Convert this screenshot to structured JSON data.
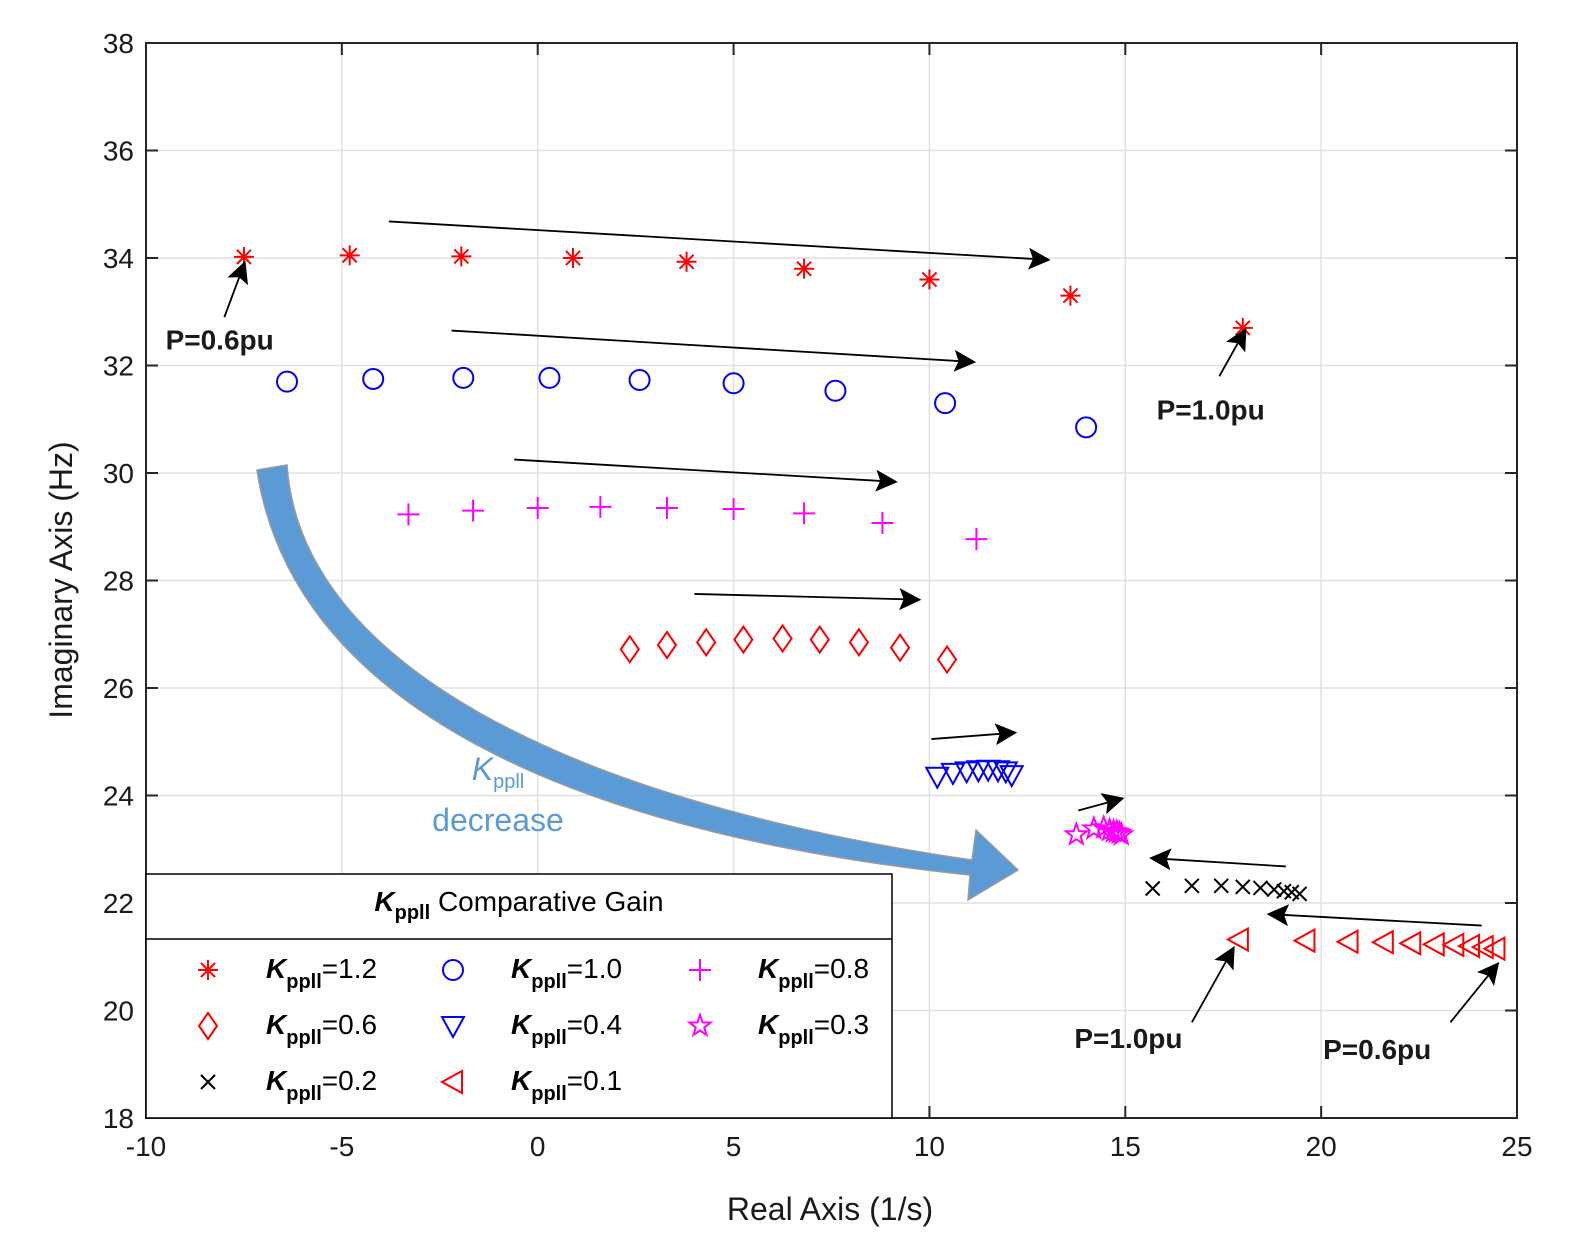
{
  "chart_data": {
    "type": "scatter",
    "xlabel": "Real Axis (1/s)",
    "ylabel": "Imaginary Axis (Hz)",
    "xlim": [
      -10,
      25
    ],
    "ylim": [
      18,
      38
    ],
    "xticks": [
      "-10",
      "-5",
      "0",
      "5",
      "10",
      "15",
      "20",
      "25"
    ],
    "yticks": [
      "18",
      "20",
      "22",
      "24",
      "26",
      "28",
      "30",
      "32",
      "34",
      "36",
      "38"
    ],
    "grid": true,
    "legend": {
      "title_symbol": "K",
      "title_sub": "ppll",
      "title_rest": " Comparative Gain",
      "placement": "bottom-left"
    },
    "series": [
      {
        "name": "Kppll=1.2",
        "gain": "=1.2",
        "marker": "asterisk",
        "color": "#ff0000",
        "points": [
          [
            -7.5,
            34.02
          ],
          [
            -4.8,
            34.05
          ],
          [
            -1.95,
            34.03
          ],
          [
            0.9,
            34.0
          ],
          [
            3.8,
            33.93
          ],
          [
            6.8,
            33.8
          ],
          [
            10.0,
            33.6
          ],
          [
            13.6,
            33.3
          ],
          [
            18.0,
            32.7
          ]
        ]
      },
      {
        "name": "Kppll=1.0",
        "gain": "=1.0",
        "marker": "circle",
        "color": "#0000ff",
        "points": [
          [
            -6.4,
            31.7
          ],
          [
            -4.2,
            31.75
          ],
          [
            -1.9,
            31.77
          ],
          [
            0.3,
            31.77
          ],
          [
            2.6,
            31.73
          ],
          [
            5.0,
            31.67
          ],
          [
            7.6,
            31.53
          ],
          [
            10.4,
            31.3
          ],
          [
            14.0,
            30.85
          ]
        ]
      },
      {
        "name": "Kppll=0.8",
        "gain": "=0.8",
        "marker": "plus",
        "color": "#ff00ff",
        "points": [
          [
            -3.3,
            29.23
          ],
          [
            -1.65,
            29.3
          ],
          [
            0.0,
            29.35
          ],
          [
            1.6,
            29.37
          ],
          [
            3.3,
            29.35
          ],
          [
            5.0,
            29.33
          ],
          [
            6.8,
            29.25
          ],
          [
            8.8,
            29.07
          ],
          [
            11.2,
            28.77
          ]
        ]
      },
      {
        "name": "Kppll=0.6",
        "gain": "=0.6",
        "marker": "diamond",
        "color": "#ff0000",
        "points": [
          [
            2.35,
            26.72
          ],
          [
            3.3,
            26.8
          ],
          [
            4.3,
            26.85
          ],
          [
            5.25,
            26.9
          ],
          [
            6.25,
            26.92
          ],
          [
            7.2,
            26.9
          ],
          [
            8.2,
            26.85
          ],
          [
            9.25,
            26.75
          ],
          [
            10.45,
            26.53
          ]
        ]
      },
      {
        "name": "Kppll=0.4",
        "gain": "=0.4",
        "marker": "triangle-down",
        "color": "#0000ff",
        "points": [
          [
            10.2,
            24.35
          ],
          [
            10.6,
            24.42
          ],
          [
            10.95,
            24.45
          ],
          [
            11.25,
            24.47
          ],
          [
            11.5,
            24.48
          ],
          [
            11.75,
            24.47
          ],
          [
            11.95,
            24.45
          ],
          [
            12.1,
            24.38
          ]
        ]
      },
      {
        "name": "Kppll=0.3",
        "gain": "=0.3",
        "marker": "star",
        "color": "#ff00ff",
        "points": [
          [
            13.75,
            23.27
          ],
          [
            14.2,
            23.38
          ],
          [
            14.45,
            23.4
          ],
          [
            14.6,
            23.35
          ],
          [
            14.7,
            23.33
          ],
          [
            14.78,
            23.32
          ],
          [
            14.85,
            23.3
          ],
          [
            14.9,
            23.27
          ]
        ]
      },
      {
        "name": "Kppll=0.2",
        "gain": "=0.2",
        "marker": "x",
        "color": "#000000",
        "points": [
          [
            15.7,
            22.27
          ],
          [
            16.7,
            22.32
          ],
          [
            17.45,
            22.32
          ],
          [
            18.0,
            22.3
          ],
          [
            18.45,
            22.28
          ],
          [
            18.8,
            22.25
          ],
          [
            19.05,
            22.22
          ],
          [
            19.25,
            22.2
          ],
          [
            19.45,
            22.17
          ]
        ]
      },
      {
        "name": "Kppll=0.1",
        "gain": "=0.1",
        "marker": "triangle-left",
        "color": "#ff0000",
        "points": [
          [
            17.9,
            21.32
          ],
          [
            19.6,
            21.3
          ],
          [
            20.7,
            21.28
          ],
          [
            21.6,
            21.27
          ],
          [
            22.3,
            21.25
          ],
          [
            22.9,
            21.23
          ],
          [
            23.4,
            21.22
          ],
          [
            23.8,
            21.2
          ],
          [
            24.15,
            21.18
          ],
          [
            24.45,
            21.15
          ]
        ]
      }
    ],
    "trend_arrows": [
      {
        "from": [
          -3.8,
          34.68
        ],
        "to": [
          12.7,
          33.98
        ]
      },
      {
        "from": [
          -2.2,
          32.65
        ],
        "to": [
          10.8,
          32.08
        ]
      },
      {
        "from": [
          -0.6,
          30.25
        ],
        "to": [
          8.8,
          29.85
        ]
      },
      {
        "from": [
          4.0,
          27.75
        ],
        "to": [
          9.4,
          27.65
        ]
      },
      {
        "from": [
          10.05,
          25.05
        ],
        "to": [
          11.85,
          25.15
        ]
      },
      {
        "from": [
          13.8,
          23.72
        ],
        "to": [
          14.6,
          23.88
        ]
      },
      {
        "from": [
          19.1,
          22.68
        ],
        "to": [
          16.0,
          22.82
        ]
      },
      {
        "from": [
          24.1,
          21.58
        ],
        "to": [
          19.0,
          21.78
        ]
      }
    ],
    "annotations": [
      {
        "text": "P=0.6pu",
        "at": [
          -9.5,
          32.3
        ],
        "arrow_from": [
          -8.0,
          32.9
        ],
        "arrow_to": [
          -7.6,
          33.68
        ]
      },
      {
        "text": "P=1.0pu",
        "at": [
          15.8,
          31.0
        ],
        "arrow_from": [
          17.4,
          31.8
        ],
        "arrow_to": [
          17.9,
          32.45
        ]
      },
      {
        "text": "P=1.0pu",
        "at": [
          13.7,
          19.3
        ],
        "arrow_from": [
          16.7,
          19.78
        ],
        "arrow_to": [
          17.6,
          20.95
        ]
      },
      {
        "text": "P=0.6pu",
        "at": [
          20.05,
          19.1
        ],
        "arrow_from": [
          23.3,
          19.78
        ],
        "arrow_to": [
          24.3,
          20.68
        ]
      }
    ],
    "curved_arrow": {
      "label_symbol": "K",
      "label_sub": "ppll",
      "label_line2": "decrease",
      "color": "#5b9bd5"
    }
  }
}
